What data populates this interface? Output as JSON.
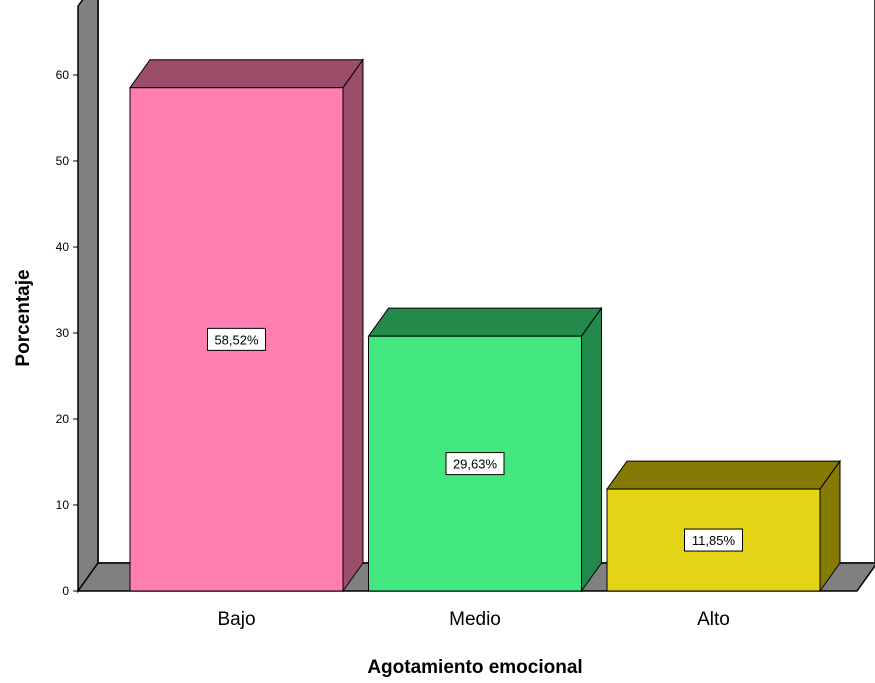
{
  "chart_data": {
    "type": "bar",
    "style": "3d",
    "categories": [
      "Bajo",
      "Medio",
      "Alto"
    ],
    "values": [
      58.52,
      29.63,
      11.85
    ],
    "data_labels": [
      "58,52%",
      "29,63%",
      "11,85%"
    ],
    "colors": [
      "#ff80b0",
      "#42e87f",
      "#e3d415"
    ],
    "side_colors": [
      "#9c4d6a",
      "#238a4c",
      "#857a04"
    ],
    "top_colors": [
      "#9c4d6a",
      "#238a4c",
      "#857a04"
    ],
    "xlabel": "Agotamiento emocional",
    "ylabel": "Porcentaje",
    "yticks": [
      0,
      10,
      20,
      30,
      40,
      50,
      60
    ],
    "ylim": [
      0,
      68
    ],
    "grid": false,
    "legend": "none",
    "floor_color": "#808080"
  }
}
